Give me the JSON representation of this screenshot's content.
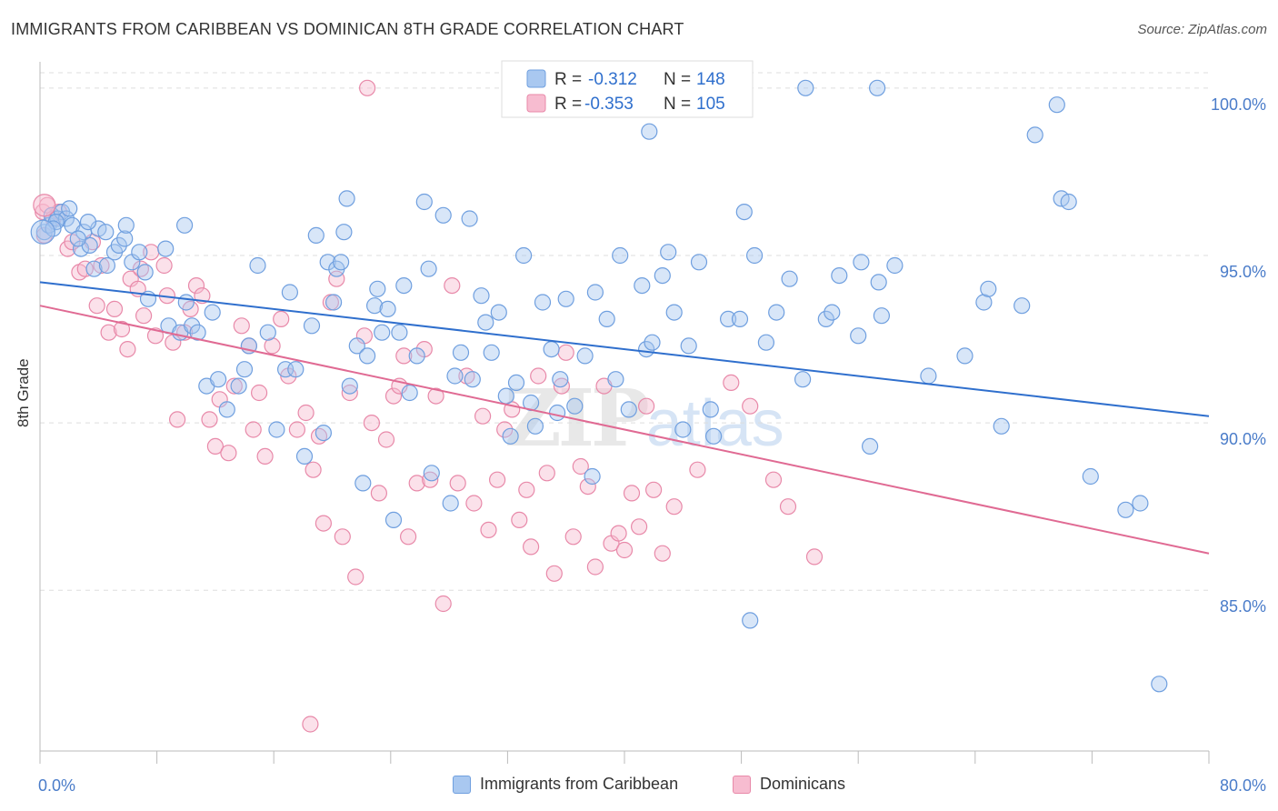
{
  "title": "IMMIGRANTS FROM CARIBBEAN VS DOMINICAN 8TH GRADE CORRELATION CHART",
  "source": "Source: ZipAtlas.com",
  "watermark": {
    "zip": "ZIP",
    "atlas": "atlas"
  },
  "colors": {
    "blue_fill": "#a9c8f0",
    "blue_stroke": "#6f9fdf",
    "blue_line": "#2f6fcd",
    "pink_fill": "#f7bcd0",
    "pink_stroke": "#e889a9",
    "pink_line": "#e06a93",
    "tick_label": "#4a7cc9",
    "grid": "#dddddd"
  },
  "legend_top": {
    "rows": [
      {
        "r_label": "R =",
        "r_value": "-0.312",
        "n_label": "N =",
        "n_value": "148"
      },
      {
        "r_label": "R =",
        "r_value": "-0.353",
        "n_label": "N =",
        "n_value": "105"
      }
    ]
  },
  "legend_bottom": {
    "items": [
      "Immigrants from Caribbean",
      "Dominicans"
    ]
  },
  "chart_data": {
    "type": "scatter",
    "title": "IMMIGRANTS FROM CARIBBEAN VS DOMINICAN 8TH GRADE CORRELATION CHART",
    "xlabel": "",
    "ylabel": "8th Grade",
    "xlim": [
      0,
      80
    ],
    "ylim": [
      80.2,
      101.0
    ],
    "x_tick_labels": [
      "0.0%",
      "80.0%"
    ],
    "y_ticks": [
      85,
      90,
      95,
      100
    ],
    "y_tick_labels": [
      "85.0%",
      "90.0%",
      "95.0%",
      "100.0%"
    ],
    "grid": "horizontal dashed",
    "legend_position": "top-center",
    "series": [
      {
        "name": "Immigrants from Caribbean",
        "r": -0.312,
        "n": 148,
        "trend": {
          "x": [
            0,
            80
          ],
          "y": [
            94.2,
            90.2
          ]
        },
        "points": [
          [
            0.3,
            95.7
          ],
          [
            0.6,
            95.9
          ],
          [
            0.8,
            96.2
          ],
          [
            1.2,
            96.1
          ],
          [
            1.5,
            96.3
          ],
          [
            1.8,
            96.1
          ],
          [
            2.0,
            96.4
          ],
          [
            2.2,
            95.9
          ],
          [
            2.8,
            95.2
          ],
          [
            3.0,
            95.7
          ],
          [
            3.4,
            95.3
          ],
          [
            3.7,
            94.6
          ],
          [
            4.0,
            95.8
          ],
          [
            4.5,
            95.7
          ],
          [
            4.6,
            94.7
          ],
          [
            5.1,
            95.1
          ],
          [
            5.4,
            95.3
          ],
          [
            5.8,
            95.5
          ],
          [
            6.3,
            94.8
          ],
          [
            6.8,
            95.1
          ],
          [
            7.2,
            94.5
          ],
          [
            7.4,
            93.7
          ],
          [
            8.6,
            95.2
          ],
          [
            8.8,
            92.9
          ],
          [
            9.6,
            92.7
          ],
          [
            10.0,
            93.6
          ],
          [
            10.4,
            92.9
          ],
          [
            10.8,
            92.7
          ],
          [
            11.4,
            91.1
          ],
          [
            11.8,
            93.3
          ],
          [
            12.2,
            91.3
          ],
          [
            12.8,
            90.4
          ],
          [
            13.6,
            91.1
          ],
          [
            14.0,
            91.6
          ],
          [
            14.3,
            92.3
          ],
          [
            14.9,
            94.7
          ],
          [
            15.6,
            92.7
          ],
          [
            16.2,
            89.8
          ],
          [
            16.8,
            91.6
          ],
          [
            17.1,
            93.9
          ],
          [
            17.5,
            91.6
          ],
          [
            18.1,
            89.0
          ],
          [
            18.6,
            92.9
          ],
          [
            18.9,
            95.6
          ],
          [
            19.4,
            89.7
          ],
          [
            19.7,
            94.8
          ],
          [
            20.1,
            93.6
          ],
          [
            20.3,
            94.6
          ],
          [
            20.6,
            94.8
          ],
          [
            21.0,
            96.7
          ],
          [
            21.2,
            91.1
          ],
          [
            21.7,
            92.3
          ],
          [
            22.1,
            88.2
          ],
          [
            22.4,
            92.0
          ],
          [
            22.9,
            93.5
          ],
          [
            23.1,
            94.0
          ],
          [
            23.4,
            92.7
          ],
          [
            23.8,
            93.4
          ],
          [
            24.2,
            87.1
          ],
          [
            24.6,
            92.7
          ],
          [
            24.9,
            94.1
          ],
          [
            25.3,
            90.9
          ],
          [
            25.8,
            92.0
          ],
          [
            26.3,
            96.6
          ],
          [
            26.6,
            94.6
          ],
          [
            26.8,
            88.5
          ],
          [
            27.6,
            96.2
          ],
          [
            28.1,
            87.6
          ],
          [
            28.4,
            91.4
          ],
          [
            28.8,
            92.1
          ],
          [
            29.4,
            96.1
          ],
          [
            29.6,
            91.3
          ],
          [
            30.2,
            93.8
          ],
          [
            30.5,
            93.0
          ],
          [
            30.9,
            92.1
          ],
          [
            31.4,
            93.3
          ],
          [
            31.9,
            90.8
          ],
          [
            32.2,
            89.6
          ],
          [
            32.6,
            91.2
          ],
          [
            33.1,
            95.0
          ],
          [
            33.6,
            90.6
          ],
          [
            33.9,
            89.9
          ],
          [
            34.4,
            93.6
          ],
          [
            35.0,
            92.2
          ],
          [
            35.4,
            90.3
          ],
          [
            35.6,
            91.3
          ],
          [
            36.0,
            93.7
          ],
          [
            36.6,
            90.5
          ],
          [
            37.3,
            92.0
          ],
          [
            37.8,
            88.4
          ],
          [
            38.0,
            93.9
          ],
          [
            38.8,
            93.1
          ],
          [
            39.4,
            91.3
          ],
          [
            39.7,
            95.0
          ],
          [
            40.3,
            90.4
          ],
          [
            41.2,
            94.1
          ],
          [
            41.5,
            92.2
          ],
          [
            41.9,
            92.4
          ],
          [
            42.6,
            94.4
          ],
          [
            43.0,
            95.1
          ],
          [
            43.4,
            93.3
          ],
          [
            44.0,
            89.8
          ],
          [
            44.4,
            92.3
          ],
          [
            45.1,
            94.8
          ],
          [
            45.9,
            90.4
          ],
          [
            46.1,
            89.6
          ],
          [
            47.1,
            93.1
          ],
          [
            47.9,
            93.1
          ],
          [
            48.2,
            96.3
          ],
          [
            48.6,
            84.1
          ],
          [
            48.9,
            95.0
          ],
          [
            49.7,
            92.4
          ],
          [
            50.4,
            93.3
          ],
          [
            51.3,
            94.3
          ],
          [
            52.2,
            91.3
          ],
          [
            53.8,
            93.1
          ],
          [
            54.2,
            93.3
          ],
          [
            54.7,
            94.4
          ],
          [
            56.0,
            92.6
          ],
          [
            56.2,
            94.8
          ],
          [
            56.8,
            89.3
          ],
          [
            57.4,
            94.2
          ],
          [
            57.6,
            93.2
          ],
          [
            58.5,
            94.7
          ],
          [
            60.8,
            91.4
          ],
          [
            63.3,
            92.0
          ],
          [
            64.6,
            93.6
          ],
          [
            64.9,
            94.0
          ],
          [
            65.8,
            89.9
          ],
          [
            67.2,
            93.5
          ],
          [
            68.1,
            98.6
          ],
          [
            69.6,
            99.5
          ],
          [
            69.9,
            96.7
          ],
          [
            70.4,
            96.6
          ],
          [
            71.9,
            88.4
          ],
          [
            74.3,
            87.4
          ],
          [
            75.3,
            87.6
          ],
          [
            76.6,
            82.2
          ],
          [
            20.8,
            95.7
          ],
          [
            52.4,
            100.0
          ],
          [
            57.3,
            100.0
          ],
          [
            41.7,
            98.7
          ],
          [
            9.9,
            95.9
          ],
          [
            2.6,
            95.5
          ],
          [
            5.9,
            95.9
          ],
          [
            1.1,
            96.0
          ],
          [
            3.3,
            96.0
          ],
          [
            0.9,
            95.8
          ]
        ]
      },
      {
        "name": "Dominicans",
        "r": -0.353,
        "n": 105,
        "trend": {
          "x": [
            0,
            80
          ],
          "y": [
            93.5,
            86.1
          ]
        },
        "points": [
          [
            0.2,
            96.3
          ],
          [
            0.3,
            95.6
          ],
          [
            0.5,
            96.5
          ],
          [
            0.9,
            96.1
          ],
          [
            1.3,
            96.3
          ],
          [
            1.9,
            95.2
          ],
          [
            2.2,
            95.4
          ],
          [
            2.7,
            94.5
          ],
          [
            3.1,
            94.6
          ],
          [
            3.6,
            95.4
          ],
          [
            3.9,
            93.5
          ],
          [
            4.2,
            94.7
          ],
          [
            4.7,
            92.7
          ],
          [
            5.1,
            93.4
          ],
          [
            5.6,
            92.8
          ],
          [
            6.0,
            92.2
          ],
          [
            6.2,
            94.3
          ],
          [
            6.7,
            94.0
          ],
          [
            6.9,
            94.6
          ],
          [
            7.1,
            93.2
          ],
          [
            7.6,
            95.1
          ],
          [
            7.9,
            92.6
          ],
          [
            8.5,
            94.7
          ],
          [
            8.7,
            93.8
          ],
          [
            9.1,
            92.4
          ],
          [
            9.4,
            90.1
          ],
          [
            9.9,
            92.7
          ],
          [
            10.3,
            93.4
          ],
          [
            10.7,
            94.1
          ],
          [
            11.1,
            93.8
          ],
          [
            11.6,
            90.1
          ],
          [
            12.0,
            89.3
          ],
          [
            12.3,
            90.7
          ],
          [
            12.9,
            89.1
          ],
          [
            13.3,
            91.1
          ],
          [
            13.8,
            92.9
          ],
          [
            14.3,
            92.3
          ],
          [
            14.6,
            89.8
          ],
          [
            15.0,
            90.9
          ],
          [
            15.4,
            89.0
          ],
          [
            15.9,
            92.3
          ],
          [
            16.5,
            93.1
          ],
          [
            17.0,
            91.4
          ],
          [
            17.6,
            89.8
          ],
          [
            18.2,
            90.3
          ],
          [
            18.7,
            88.6
          ],
          [
            19.1,
            89.6
          ],
          [
            19.4,
            87.0
          ],
          [
            19.9,
            93.6
          ],
          [
            20.3,
            94.3
          ],
          [
            20.7,
            86.6
          ],
          [
            21.2,
            90.9
          ],
          [
            21.6,
            85.4
          ],
          [
            22.2,
            92.6
          ],
          [
            22.7,
            90.0
          ],
          [
            23.2,
            87.9
          ],
          [
            23.7,
            89.5
          ],
          [
            24.2,
            90.8
          ],
          [
            24.6,
            91.1
          ],
          [
            24.9,
            92.0
          ],
          [
            25.2,
            86.6
          ],
          [
            25.8,
            88.2
          ],
          [
            26.3,
            92.2
          ],
          [
            26.7,
            88.3
          ],
          [
            27.1,
            90.8
          ],
          [
            27.6,
            84.6
          ],
          [
            28.2,
            94.1
          ],
          [
            28.6,
            88.2
          ],
          [
            29.2,
            91.4
          ],
          [
            29.7,
            87.6
          ],
          [
            30.3,
            90.2
          ],
          [
            30.7,
            86.8
          ],
          [
            31.3,
            88.3
          ],
          [
            31.8,
            89.8
          ],
          [
            32.3,
            90.4
          ],
          [
            32.8,
            87.1
          ],
          [
            33.3,
            88.0
          ],
          [
            33.6,
            86.3
          ],
          [
            34.1,
            91.4
          ],
          [
            34.7,
            88.5
          ],
          [
            35.2,
            85.5
          ],
          [
            35.7,
            91.1
          ],
          [
            36.0,
            92.1
          ],
          [
            36.5,
            86.6
          ],
          [
            37.0,
            88.7
          ],
          [
            37.5,
            88.1
          ],
          [
            38.0,
            85.7
          ],
          [
            38.6,
            91.1
          ],
          [
            39.1,
            86.4
          ],
          [
            39.6,
            86.7
          ],
          [
            40.0,
            86.2
          ],
          [
            40.5,
            87.9
          ],
          [
            41.0,
            86.9
          ],
          [
            41.5,
            90.5
          ],
          [
            42.0,
            88.0
          ],
          [
            42.6,
            86.1
          ],
          [
            43.4,
            87.5
          ],
          [
            45.0,
            88.6
          ],
          [
            47.3,
            91.2
          ],
          [
            48.6,
            90.5
          ],
          [
            50.2,
            88.3
          ],
          [
            51.2,
            87.5
          ],
          [
            53.0,
            86.0
          ],
          [
            22.4,
            100.0
          ],
          [
            18.5,
            81.0
          ]
        ]
      }
    ]
  }
}
